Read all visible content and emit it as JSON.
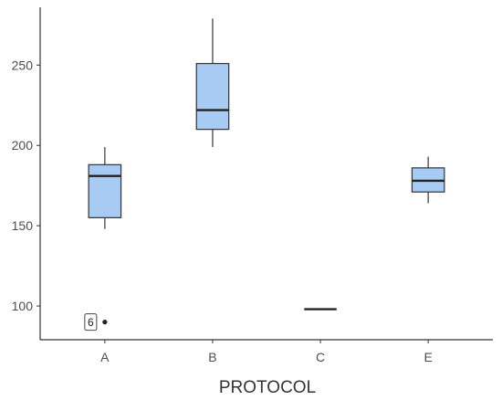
{
  "chart_data": {
    "type": "boxplot",
    "title": "",
    "xlabel": "PROTOCOL",
    "ylabel": "",
    "categories": [
      "A",
      "B",
      "C",
      "E"
    ],
    "ylim": [
      79,
      286
    ],
    "y_ticks": [
      100,
      150,
      200,
      250
    ],
    "grid": false,
    "legend": "none",
    "box_fill": "#a8cbf3",
    "box_stroke": "#333333",
    "boxes": [
      {
        "category": "A",
        "min": 148,
        "q1": 155,
        "median": 181,
        "q3": 188,
        "max": 199
      },
      {
        "category": "B",
        "min": 199,
        "q1": 210,
        "median": 222,
        "q3": 251,
        "max": 279
      },
      {
        "category": "C",
        "min": 98,
        "q1": 98,
        "median": 98,
        "q3": 98,
        "max": 98
      },
      {
        "category": "E",
        "min": 164,
        "q1": 171,
        "median": 178,
        "q3": 186,
        "max": 193
      }
    ],
    "outliers": [
      {
        "category": "A",
        "value": 90,
        "label": "6"
      }
    ]
  }
}
